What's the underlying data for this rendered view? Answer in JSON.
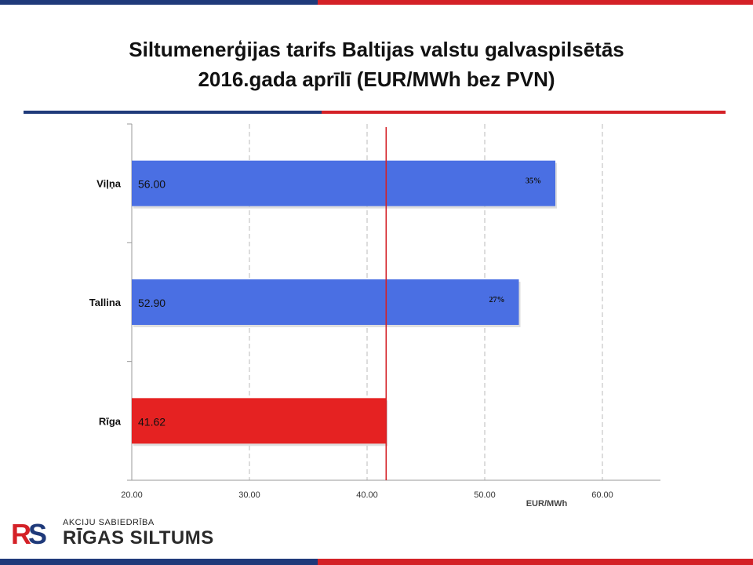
{
  "slide": {
    "title_line1": "Siltumenerģijas tarifs Baltijas valstu galvaspilsētās",
    "title_line2": "2016.gada aprīlī (EUR/MWh bez PVN)"
  },
  "logo": {
    "company_type": "AKCIJU SABIEDRĪBA",
    "company_name": "RĪGAS SILTUMS",
    "mark_text": "RS"
  },
  "colors": {
    "blue_bar": "#4a6fe3",
    "red_bar": "#e52222",
    "reference_line": "#d42127",
    "brand_blue": "#1f3a7a",
    "brand_red": "#d42127"
  },
  "chart_data": {
    "type": "bar",
    "orientation": "horizontal",
    "categories": [
      "Viļņa",
      "Tallina",
      "Rīga"
    ],
    "values": [
      56.0,
      52.9,
      41.62
    ],
    "value_labels": [
      "56.00",
      "52.90",
      "41.62"
    ],
    "percent_labels": [
      "35%",
      "27%",
      ""
    ],
    "bar_colors": [
      "blue",
      "blue",
      "red"
    ],
    "reference_line_value": 41.62,
    "xlim": [
      20,
      65
    ],
    "x_ticks": [
      "20.00",
      "30.00",
      "40.00",
      "50.00",
      "60.00"
    ],
    "xlabel": "EUR/MWh",
    "grid": "vertical dashed"
  }
}
